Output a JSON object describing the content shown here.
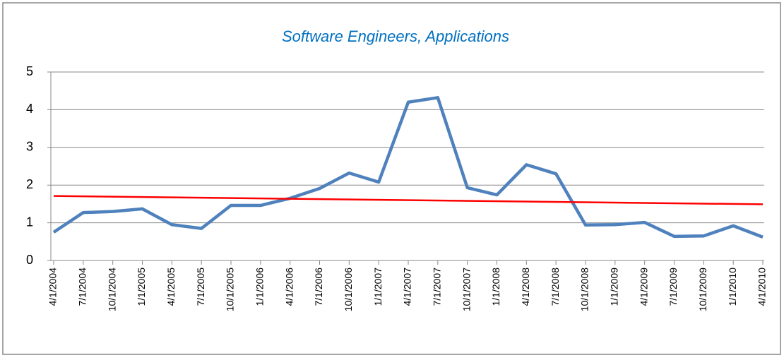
{
  "chart_data": {
    "type": "line",
    "title": "Software Engineers, Applications",
    "categories": [
      "4/1/2004",
      "7/1/2004",
      "10/1/2004",
      "1/1/2005",
      "4/1/2005",
      "7/1/2005",
      "10/1/2005",
      "1/1/2006",
      "4/1/2006",
      "7/1/2006",
      "10/1/2006",
      "1/1/2007",
      "4/1/2007",
      "7/1/2007",
      "10/1/2007",
      "1/1/2008",
      "4/1/2008",
      "7/1/2008",
      "10/1/2008",
      "1/1/2009",
      "4/1/2009",
      "7/1/2009",
      "10/1/2009",
      "1/1/2010",
      "4/1/2010"
    ],
    "series": [
      {
        "color": "#4f81bd",
        "values": [
          0.75,
          1.27,
          1.3,
          1.37,
          0.95,
          0.85,
          1.46,
          1.46,
          1.65,
          1.91,
          2.32,
          2.08,
          4.2,
          4.32,
          1.93,
          1.74,
          2.54,
          2.3,
          0.94,
          0.95,
          1.01,
          0.64,
          0.65,
          0.92,
          0.62
        ]
      }
    ],
    "trendline": {
      "color": "#ff0000",
      "values": [
        1.71,
        1.49
      ]
    },
    "ylim": [
      0,
      5
    ],
    "yticks": [
      0,
      1,
      2,
      3,
      4,
      5
    ],
    "grid": true
  }
}
